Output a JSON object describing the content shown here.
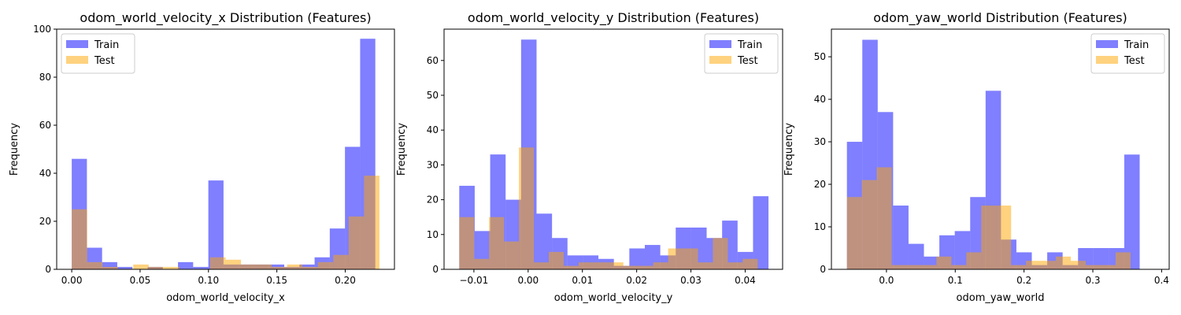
{
  "colors": {
    "train": "#7b7bf7",
    "test": "#ffd27f",
    "overlap": "#b98b85"
  },
  "chart_data": [
    {
      "type": "histogram",
      "title": "odom_world_velocity_x Distribution (Features)",
      "xlabel": "odom_world_velocity_x",
      "ylabel": "Frequency",
      "xlim": [
        -0.011,
        0.236
      ],
      "ylim": [
        0,
        100
      ],
      "xticks": [
        0.0,
        0.05,
        0.1,
        0.15,
        0.2
      ],
      "xtick_labels": [
        "0.00",
        "0.05",
        "0.10",
        "0.15",
        "0.20"
      ],
      "yticks": [
        0,
        20,
        40,
        60,
        80,
        100
      ],
      "legend": "top-left",
      "series": [
        {
          "name": "Train",
          "bin_start": 0.0,
          "bin_width": 0.0111,
          "values": [
            46,
            9,
            3,
            1,
            0,
            1,
            0,
            3,
            1,
            37,
            2,
            2,
            2,
            2,
            1,
            2,
            5,
            17,
            51,
            96
          ]
        },
        {
          "name": "Test",
          "bin_start": 0.0,
          "bin_width": 0.01125,
          "values": [
            25,
            3,
            1,
            0,
            2,
            1,
            1,
            0,
            0,
            5,
            4,
            2,
            2,
            1,
            2,
            1,
            3,
            6,
            22,
            39
          ]
        }
      ]
    },
    {
      "type": "histogram",
      "title": "odom_world_velocity_y Distribution (Features)",
      "xlabel": "odom_world_velocity_y",
      "ylabel": "Frequency",
      "xlim": [
        -0.0155,
        0.0469
      ],
      "ylim": [
        0,
        69
      ],
      "xticks": [
        -0.01,
        0.0,
        0.01,
        0.02,
        0.03,
        0.04
      ],
      "xtick_labels": [
        "−0.01",
        "0.00",
        "0.01",
        "0.02",
        "0.03",
        "0.04"
      ],
      "yticks": [
        0,
        10,
        20,
        30,
        40,
        50,
        60
      ],
      "legend": "top-right",
      "series": [
        {
          "name": "Train",
          "bin_start": -0.0127,
          "bin_width": 0.00285,
          "values": [
            24,
            11,
            33,
            20,
            66,
            16,
            9,
            4,
            4,
            3,
            1,
            6,
            7,
            4,
            12,
            12,
            9,
            14,
            5,
            21
          ]
        },
        {
          "name": "Test",
          "bin_start": -0.0127,
          "bin_width": 0.00275,
          "values": [
            15,
            3,
            15,
            8,
            35,
            2,
            5,
            1,
            2,
            2,
            2,
            1,
            1,
            2,
            6,
            6,
            2,
            9,
            2,
            3
          ]
        }
      ]
    },
    {
      "type": "histogram",
      "title": "odom_yaw_world Distribution (Features)",
      "xlabel": "odom_yaw_world",
      "ylabel": "Frequency",
      "xlim": [
        -0.08,
        0.411
      ],
      "ylim": [
        0,
        56.5
      ],
      "xticks": [
        0.0,
        0.1,
        0.2,
        0.3,
        0.4
      ],
      "xtick_labels": [
        "0.0",
        "0.1",
        "0.2",
        "0.3",
        "0.4"
      ],
      "yticks": [
        0,
        10,
        20,
        30,
        40,
        50
      ],
      "legend": "top-right",
      "series": [
        {
          "name": "Train",
          "bin_start": -0.0575,
          "bin_width": 0.0224,
          "values": [
            30,
            54,
            37,
            15,
            6,
            3,
            8,
            9,
            17,
            42,
            7,
            4,
            1,
            4,
            1,
            5,
            5,
            5,
            27
          ]
        },
        {
          "name": "Test",
          "bin_start": -0.0575,
          "bin_width": 0.0217,
          "values": [
            17,
            21,
            24,
            1,
            1,
            1,
            3,
            1,
            4,
            15,
            15,
            1,
            2,
            2,
            3,
            2,
            1,
            1,
            4
          ]
        }
      ]
    }
  ]
}
